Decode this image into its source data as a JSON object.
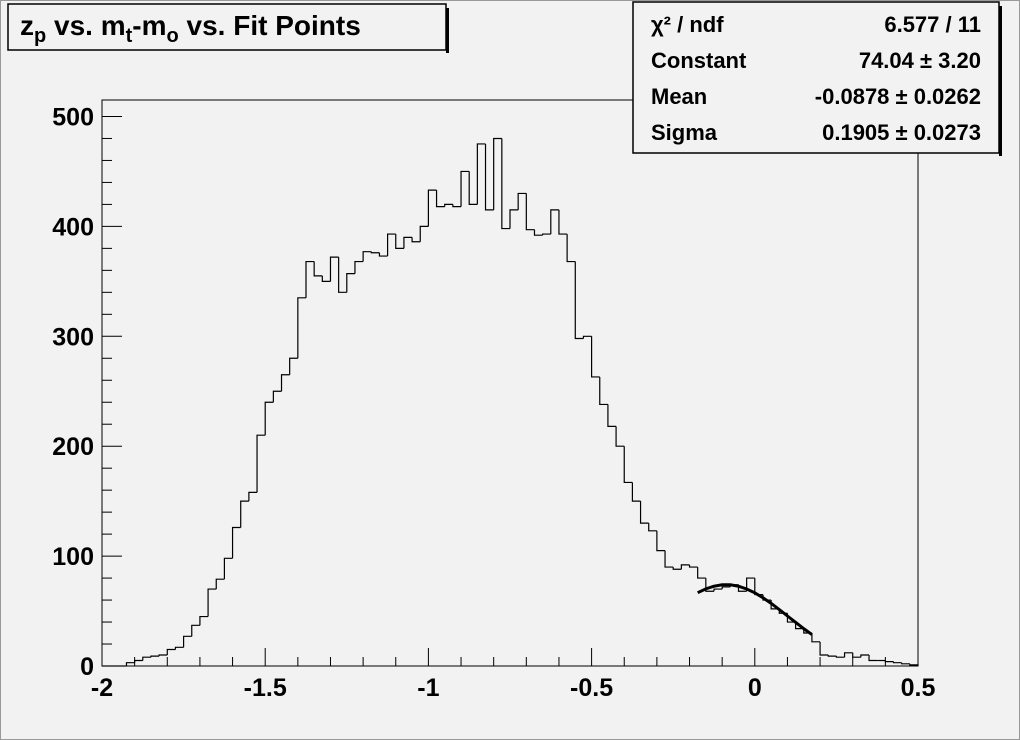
{
  "chart_data": {
    "type": "histogram",
    "title_parts": [
      {
        "text": "z"
      },
      {
        "text": "p",
        "sub": true
      },
      {
        "text": " vs. m"
      },
      {
        "text": "t",
        "sub": true
      },
      {
        "text": "-m"
      },
      {
        "text": "o",
        "sub": true
      },
      {
        "text": " vs. Fit Points"
      }
    ],
    "stats": [
      {
        "label": "χ² / ndf",
        "value": "6.577 / 11"
      },
      {
        "label": "Constant",
        "value": "74.04 ± 3.20"
      },
      {
        "label": "Mean",
        "value": "-0.0878 ± 0.0262"
      },
      {
        "label": "Sigma",
        "value": "0.1905 ± 0.0273"
      }
    ],
    "bins": [
      -2,
      -1.975,
      -1.95,
      -1.925,
      -1.9,
      -1.875,
      -1.85,
      -1.825,
      -1.8,
      -1.775,
      -1.75,
      -1.725,
      -1.7,
      -1.675,
      -1.65,
      -1.625,
      -1.6,
      -1.575,
      -1.55,
      -1.525,
      -1.5,
      -1.475,
      -1.45,
      -1.425,
      -1.4,
      -1.375,
      -1.35,
      -1.325,
      -1.3,
      -1.275,
      -1.25,
      -1.225,
      -1.2,
      -1.175,
      -1.15,
      -1.125,
      -1.1,
      -1.075,
      -1.05,
      -1.025,
      -1,
      -0.975,
      -0.95,
      -0.925,
      -0.9,
      -0.875,
      -0.85,
      -0.825,
      -0.8,
      -0.775,
      -0.75,
      -0.725,
      -0.7,
      -0.675,
      -0.65,
      -0.625,
      -0.6,
      -0.575,
      -0.55,
      -0.525,
      -0.5,
      -0.475,
      -0.45,
      -0.425,
      -0.4,
      -0.375,
      -0.35,
      -0.325,
      -0.3,
      -0.275,
      -0.25,
      -0.225,
      -0.2,
      -0.175,
      -0.15,
      -0.125,
      -0.1,
      -0.075,
      -0.05,
      -0.025,
      0,
      0.025,
      0.05,
      0.075,
      0.1,
      0.125,
      0.15,
      0.175,
      0.2,
      0.225,
      0.25,
      0.275,
      0.3,
      0.325,
      0.35,
      0.375,
      0.4,
      0.425,
      0.45,
      0.475,
      0.5
    ],
    "values": [
      0,
      0,
      0,
      3,
      5,
      8,
      9,
      10,
      15,
      17,
      27,
      37,
      45,
      70,
      79,
      98,
      126,
      150,
      158,
      210,
      240,
      250,
      265,
      280,
      335,
      368,
      355,
      350,
      372,
      340,
      357,
      368,
      377,
      376,
      373,
      393,
      380,
      390,
      386,
      400,
      433,
      418,
      420,
      418,
      450,
      420,
      475,
      415,
      480,
      398,
      415,
      430,
      397,
      392,
      393,
      415,
      393,
      368,
      298,
      300,
      263,
      238,
      218,
      200,
      167,
      150,
      130,
      123,
      105,
      90,
      88,
      92,
      90,
      80,
      68,
      70,
      72,
      74,
      68,
      80,
      65,
      60,
      52,
      48,
      40,
      34,
      30,
      22,
      10,
      9,
      8,
      12,
      8,
      10,
      5,
      5,
      4,
      3,
      2,
      1
    ],
    "color": "#000000",
    "fit": {
      "color": "#000000",
      "x": [
        -0.175,
        -0.15,
        -0.125,
        -0.1,
        -0.075,
        -0.05,
        -0.025,
        0,
        0.025,
        0.05,
        0.075,
        0.1,
        0.125,
        0.15,
        0.175
      ],
      "values": [
        66.7,
        70.2,
        72.6,
        73.9,
        73.9,
        72.6,
        70.1,
        66.6,
        62.1,
        57.0,
        51.4,
        45.5,
        39.7,
        34.0,
        28.6
      ]
    },
    "xlim": [
      -2,
      0.5
    ],
    "ylim": [
      0,
      515
    ],
    "xticks": [
      -2,
      -1.5,
      -1,
      -0.5,
      0,
      0.5
    ],
    "yticks": [
      0,
      100,
      200,
      300,
      400,
      500
    ]
  }
}
